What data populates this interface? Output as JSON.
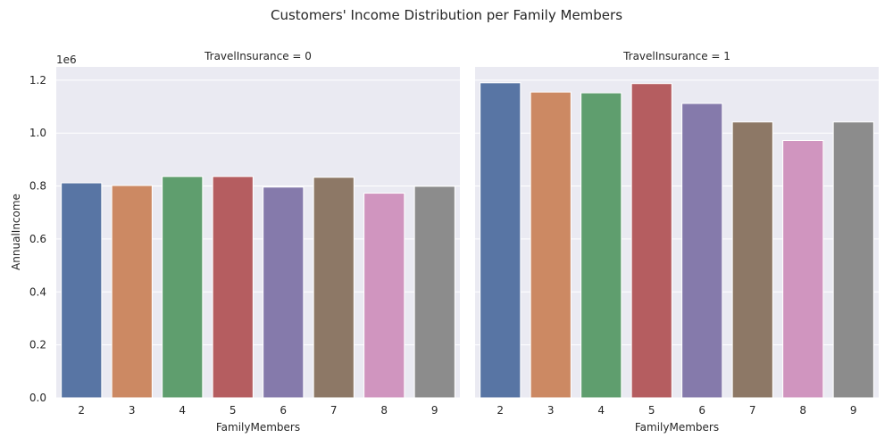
{
  "chart_data": {
    "type": "bar",
    "title": "Customers' Income Distribution per Family Members",
    "xlabel": "FamilyMembers",
    "ylabel": "AnnualIncome",
    "y_scale_label": "1e6",
    "ylim": [
      0,
      1.25
    ],
    "yticks": [
      "0.0",
      "0.2",
      "0.4",
      "0.6",
      "0.8",
      "1.0",
      "1.2"
    ],
    "ytick_values": [
      0,
      0.2,
      0.4,
      0.6,
      0.8,
      1.0,
      1.2
    ],
    "grid": true,
    "categories": [
      "2",
      "3",
      "4",
      "5",
      "6",
      "7",
      "8",
      "9"
    ],
    "colors": [
      "#5875a4",
      "#cc8963",
      "#5f9e6e",
      "#b55d60",
      "#857aab",
      "#8d7866",
      "#d095bf",
      "#8c8c8c"
    ],
    "facets": [
      {
        "title": "TravelInsurance = 0",
        "values": [
          0.812,
          0.802,
          0.836,
          0.836,
          0.796,
          0.833,
          0.773,
          0.799
        ]
      },
      {
        "title": "TravelInsurance = 1",
        "values": [
          1.19,
          1.155,
          1.152,
          1.187,
          1.112,
          1.042,
          0.972,
          1.042
        ]
      }
    ]
  }
}
